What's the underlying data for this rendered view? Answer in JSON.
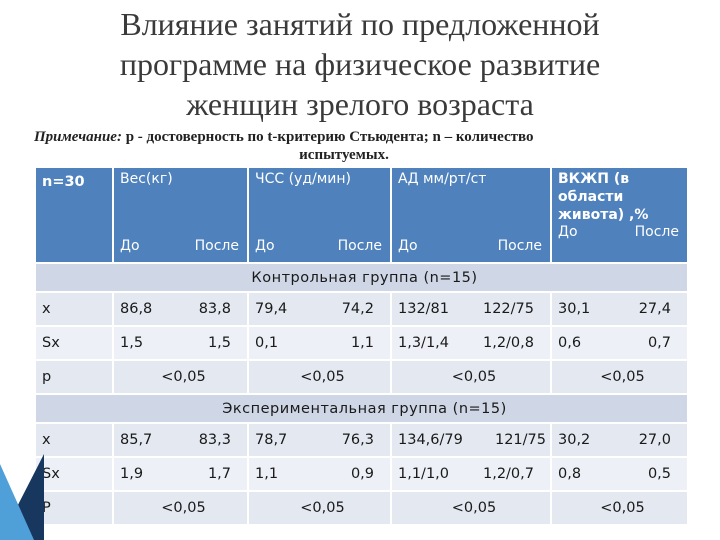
{
  "slide": {
    "title_lines": [
      "Влияние занятий по предложенной",
      "программе на физическое развитие",
      "женщин зрелого возраста"
    ],
    "note_label": "Примечание:",
    "note_line1": "р - достоверность по t-критерию Стьюдента; n – количество",
    "note_line2": "испытуемых."
  },
  "table": {
    "header": {
      "n": "n=30",
      "weight": "Вес(кг)",
      "hr": "ЧСС (уд/мин)",
      "bp": "АД мм/рт/ст",
      "fat": "ВКЖП (в области живота) ,%",
      "before": "До",
      "after": "После"
    },
    "groups": [
      {
        "name": "Контрольная группа (n=15)",
        "rows": [
          {
            "label": "x",
            "values": [
              "86,8",
              "83,8",
              "79,4",
              "74,2",
              "132/81",
              "122/75",
              "30,1",
              "27,4"
            ]
          },
          {
            "label": "Sx",
            "values": [
              "1,5",
              "1,5",
              "0,1",
              "1,1",
              "1,3/1,4",
              "1,2/0,8",
              "0,6",
              "0,7"
            ]
          }
        ],
        "p_label": "p",
        "p_values": [
          "<0,05",
          "<0,05",
          "<0,05",
          "<0,05"
        ]
      },
      {
        "name": "Экспериментальная группа (n=15)",
        "rows": [
          {
            "label": "x",
            "values": [
              "85,7",
              "83,3",
              "78,7",
              "76,3",
              "134,6/79",
              "121/75",
              "30,2",
              "27,0"
            ]
          },
          {
            "label": "Sx",
            "values": [
              "1,9",
              "1,7",
              "1,1",
              "0,9",
              "1,1/1,0",
              "1,2/0,7",
              "0,8",
              "0,5"
            ]
          }
        ],
        "p_label": "P",
        "p_values": [
          "<0,05",
          "<0,05",
          "<0,05",
          "<0,05"
        ]
      }
    ]
  },
  "colors": {
    "header": "#4f81bd",
    "group_row": "#cfd7e6",
    "row_dark": "#e3e8f1",
    "row_light": "#edf1f7",
    "deco_dark": "#17375e",
    "deco_light": "#4f9fd8"
  }
}
